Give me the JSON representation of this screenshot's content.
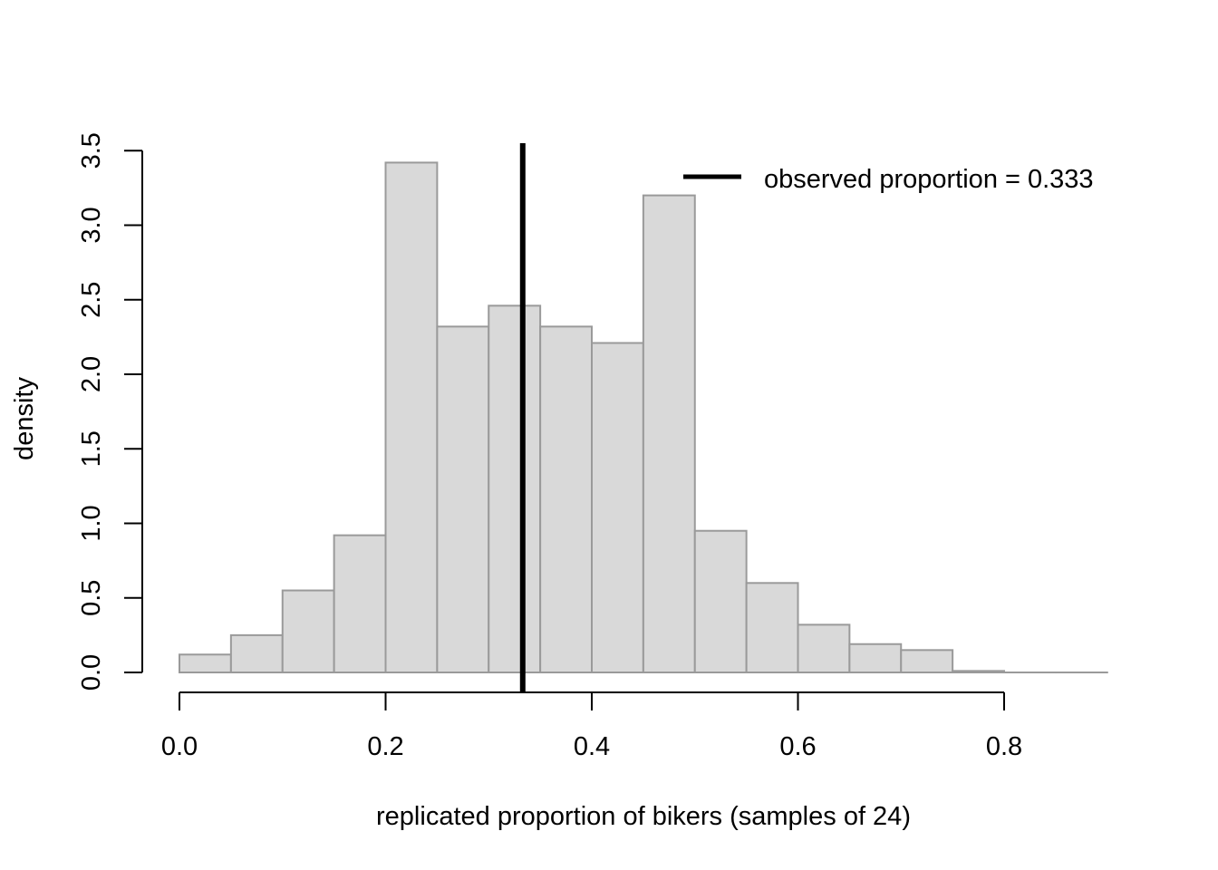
{
  "chart_data": {
    "type": "bar",
    "title": "",
    "xlabel": "replicated proportion of bikers (samples of 24)",
    "ylabel": "density",
    "xlim": [
      0.0,
      0.9
    ],
    "ylim": [
      0.0,
      3.5
    ],
    "x_ticks": [
      "0.0",
      "0.2",
      "0.4",
      "0.6",
      "0.8"
    ],
    "y_ticks": [
      "0.0",
      "0.5",
      "1.0",
      "1.5",
      "2.0",
      "2.5",
      "3.0",
      "3.5"
    ],
    "bin_width": 0.05,
    "bins": [
      {
        "start": 0.0,
        "end": 0.05,
        "density": 0.12
      },
      {
        "start": 0.05,
        "end": 0.1,
        "density": 0.25
      },
      {
        "start": 0.1,
        "end": 0.15,
        "density": 0.55
      },
      {
        "start": 0.15,
        "end": 0.2,
        "density": 0.92
      },
      {
        "start": 0.2,
        "end": 0.25,
        "density": 3.42
      },
      {
        "start": 0.25,
        "end": 0.3,
        "density": 2.32
      },
      {
        "start": 0.3,
        "end": 0.35,
        "density": 2.46
      },
      {
        "start": 0.35,
        "end": 0.4,
        "density": 2.32
      },
      {
        "start": 0.4,
        "end": 0.45,
        "density": 2.21
      },
      {
        "start": 0.45,
        "end": 0.5,
        "density": 3.2
      },
      {
        "start": 0.5,
        "end": 0.55,
        "density": 0.95
      },
      {
        "start": 0.55,
        "end": 0.6,
        "density": 0.6
      },
      {
        "start": 0.6,
        "end": 0.65,
        "density": 0.32
      },
      {
        "start": 0.65,
        "end": 0.7,
        "density": 0.19
      },
      {
        "start": 0.7,
        "end": 0.75,
        "density": 0.15
      },
      {
        "start": 0.75,
        "end": 0.8,
        "density": 0.01
      },
      {
        "start": 0.8,
        "end": 0.85,
        "density": 0.0
      },
      {
        "start": 0.85,
        "end": 0.9,
        "density": 0.0
      }
    ],
    "observed_line": {
      "x": 0.333,
      "label": "observed proportion = 0.333"
    },
    "legend": {
      "position": "top-right",
      "entries": [
        "observed proportion = 0.333"
      ]
    },
    "grid": false,
    "colors": {
      "bar_fill": "#d9d9d9",
      "bar_stroke": "#9a9a9a",
      "line": "#000000"
    }
  }
}
